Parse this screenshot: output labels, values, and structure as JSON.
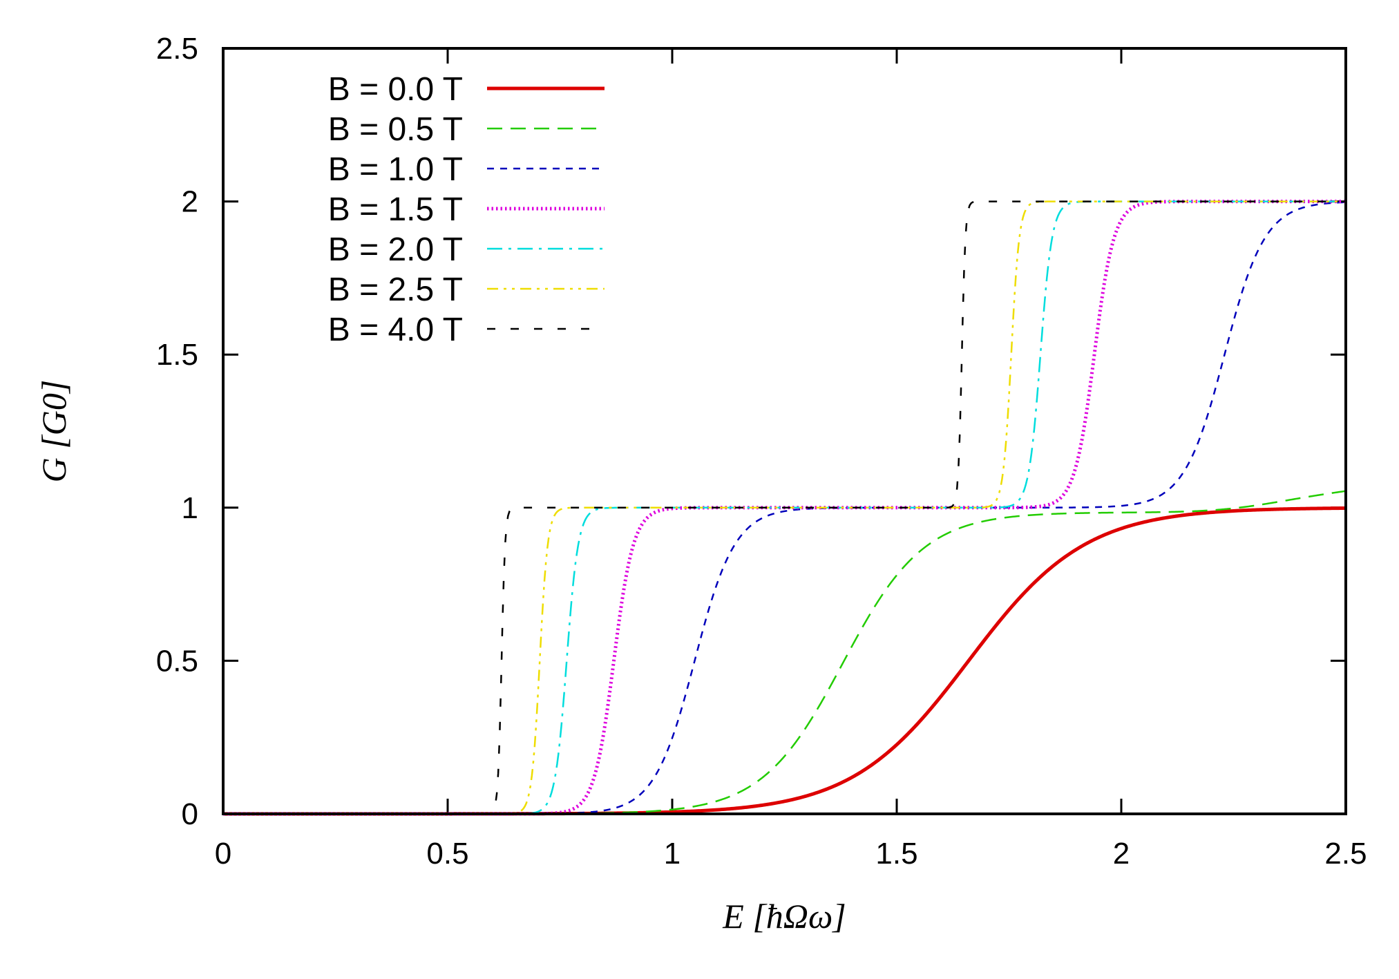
{
  "chart_data": {
    "type": "line",
    "xlabel": "E [ħΩω]",
    "ylabel": "G [G0]",
    "xlim": [
      0,
      2.5
    ],
    "ylim": [
      0,
      2.5
    ],
    "xticks": [
      0,
      0.5,
      1,
      1.5,
      2,
      2.5
    ],
    "yticks": [
      0,
      0.5,
      1,
      1.5,
      2,
      2.5
    ],
    "xtick_labels": [
      "0",
      "0.5",
      "1",
      "1.5",
      "2",
      "2.5"
    ],
    "ytick_labels": [
      "0",
      "0.5",
      "1",
      "1.5",
      "2",
      "2.5"
    ],
    "legend_position": "top-left",
    "series": [
      {
        "name": "B = 0.0 T",
        "color": "#dd0000",
        "dash": "solid",
        "steps": [
          {
            "center": 1.66,
            "width": 0.13,
            "height": 1.0
          }
        ],
        "tail_slope": 0.0
      },
      {
        "name": "B = 0.5 T",
        "color": "#22cc00",
        "dash": "long-dash",
        "steps": [
          {
            "center": 1.38,
            "width": 0.09,
            "height": 0.985
          }
        ],
        "tail_slope": 0.15
      },
      {
        "name": "B = 1.0 T",
        "color": "#0000bb",
        "dash": "short-dash",
        "steps": [
          {
            "center": 1.05,
            "width": 0.045,
            "height": 1.0
          },
          {
            "center": 2.23,
            "width": 0.045,
            "height": 1.0
          }
        ],
        "tail_slope": 0.0
      },
      {
        "name": "B = 1.5 T",
        "color": "#dd00dd",
        "dash": "dotted",
        "steps": [
          {
            "center": 0.87,
            "width": 0.022,
            "height": 1.0
          },
          {
            "center": 1.94,
            "width": 0.022,
            "height": 1.0
          }
        ],
        "tail_slope": 0.0
      },
      {
        "name": "B = 2.0 T",
        "color": "#00dddd",
        "dash": "dash-dot",
        "steps": [
          {
            "center": 0.765,
            "width": 0.013,
            "height": 1.0
          },
          {
            "center": 1.82,
            "width": 0.013,
            "height": 1.0
          }
        ],
        "tail_slope": 0.0
      },
      {
        "name": "B = 2.5 T",
        "color": "#eedd00",
        "dash": "dash-dot-dot",
        "steps": [
          {
            "center": 0.705,
            "width": 0.009,
            "height": 1.0
          },
          {
            "center": 1.755,
            "width": 0.009,
            "height": 1.0
          }
        ],
        "tail_slope": 0.0
      },
      {
        "name": "B = 4.0 T",
        "color": "#000000",
        "dash": "sparse-dash",
        "steps": [
          {
            "center": 0.62,
            "width": 0.004,
            "height": 1.0
          },
          {
            "center": 1.645,
            "width": 0.004,
            "height": 1.0
          }
        ],
        "tail_slope": 0.0
      }
    ]
  }
}
